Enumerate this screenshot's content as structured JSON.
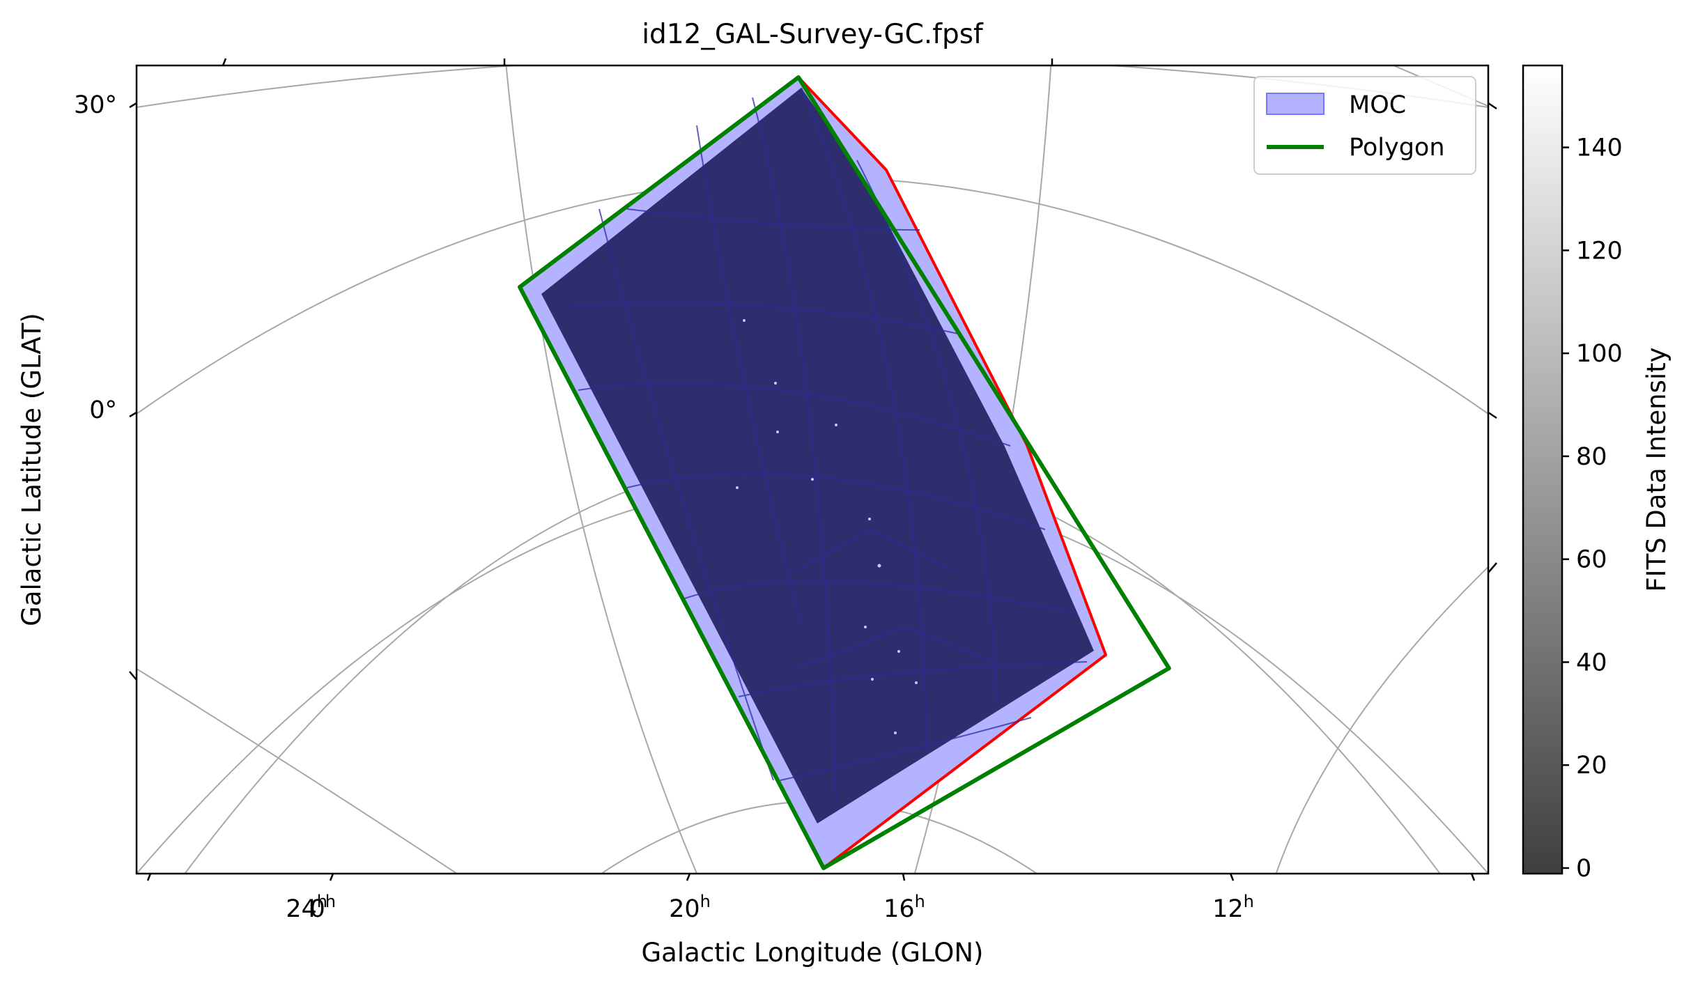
{
  "chart_data": {
    "type": "map",
    "title": "id12_GAL-Survey-GC.fpsf",
    "xlabel": "Galactic Longitude (GLON)",
    "ylabel": "Galactic Latitude (GLAT)",
    "projection": "all-sky world coordinate grid",
    "grid": true,
    "legend_placement": "top-right",
    "x_ticks": [
      {
        "label": "24",
        "sup": "h"
      },
      {
        "label": "0",
        "sup": "h"
      },
      {
        "label": "20",
        "sup": "h"
      },
      {
        "label": "16",
        "sup": "h"
      },
      {
        "label": "12",
        "sup": "h"
      }
    ],
    "y_ticks": [
      "30°",
      "0°"
    ],
    "series": [
      {
        "name": "MOC",
        "kind": "filled region",
        "color": "#0000ff",
        "fill_alpha": 0.3
      },
      {
        "name": "Polygon",
        "kind": "outline",
        "color": "#008000",
        "vertices": [
          {
            "glon_h": 17.8,
            "glat_deg": 31
          },
          {
            "glon_h": 21.6,
            "glat_deg": 12
          },
          {
            "glon_h": 17.6,
            "glat_deg": -42
          },
          {
            "glon_h": 12.9,
            "glat_deg": -24
          }
        ]
      }
    ],
    "extra_outline_color": "#ff0000",
    "fits_image_color": "#2e2e6e",
    "colorbar": {
      "label": "FITS Data Intensity",
      "range": [
        0,
        157
      ],
      "ticks": [
        "0",
        "20",
        "40",
        "60",
        "80",
        "100",
        "120",
        "140"
      ],
      "colormap": "gray"
    }
  }
}
